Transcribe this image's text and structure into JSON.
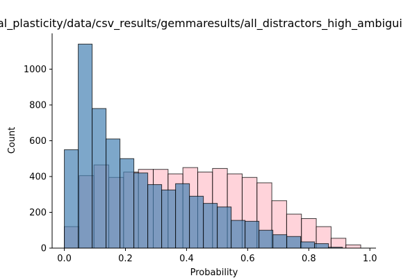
{
  "chart_data": {
    "type": "bar",
    "title": "al_plasticity/data/csv_results/gemmaresults/all_distractors_high_ambigui",
    "xlabel": "Probability",
    "ylabel": "Count",
    "xlim": [
      -0.04,
      1.02
    ],
    "ylim": [
      0,
      1200
    ],
    "xticks": [
      "0.0",
      "0.2",
      "0.4",
      "0.6",
      "0.8",
      "1.0"
    ],
    "yticks": [
      "0",
      "200",
      "400",
      "600",
      "800",
      "1000"
    ],
    "grid": false,
    "legend": "none",
    "series": [
      {
        "color": "#ffb6c1",
        "opacity": 0.6,
        "bin_edges": [
          0.0,
          0.0485,
          0.097,
          0.1455,
          0.194,
          0.2425,
          0.291,
          0.3395,
          0.388,
          0.4365,
          0.485,
          0.5335,
          0.582,
          0.6305,
          0.679,
          0.7275,
          0.776,
          0.8245,
          0.873,
          0.9215,
          0.97
        ],
        "values": [
          120,
          405,
          465,
          395,
          425,
          440,
          440,
          415,
          450,
          425,
          445,
          415,
          395,
          365,
          265,
          190,
          165,
          120,
          55,
          18
        ]
      },
      {
        "color": "#4682b4",
        "opacity": 0.7,
        "bin_edges": [
          0.0,
          0.0455,
          0.091,
          0.1365,
          0.182,
          0.2275,
          0.273,
          0.3185,
          0.364,
          0.4095,
          0.455,
          0.5005,
          0.546,
          0.5915,
          0.637,
          0.6825,
          0.728,
          0.7735,
          0.819,
          0.8645,
          0.91
        ],
        "values": [
          550,
          1140,
          780,
          610,
          500,
          420,
          355,
          325,
          360,
          290,
          250,
          230,
          155,
          150,
          100,
          75,
          65,
          35,
          25,
          5
        ]
      }
    ]
  }
}
